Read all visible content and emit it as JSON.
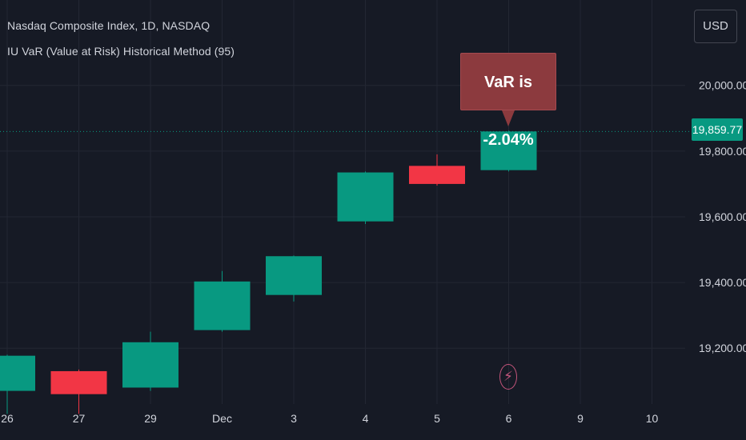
{
  "header": {
    "symbol": "Nasdaq Composite Index, 1D, NASDAQ",
    "indicator": "IU VaR (Value at Risk) Historical Method (95)"
  },
  "toolbar": {
    "currency": "USD"
  },
  "price_tag": {
    "value": "19,859.77",
    "color": "#089981"
  },
  "annotation": {
    "text": "VaR is -2.04%",
    "color": "#8c3a3e"
  },
  "event_marker": {
    "icon": "lightning-icon",
    "color": "#c2547a"
  },
  "chart_data": {
    "type": "candlestick",
    "title": "Nasdaq Composite Index, 1D, NASDAQ",
    "categories": [
      "26",
      "27",
      "29",
      "Dec",
      "3",
      "4",
      "5",
      "6",
      "9",
      "10"
    ],
    "candles": [
      {
        "date": "26",
        "open": 19070,
        "close": 19177,
        "high": 19180,
        "low": 19000
      },
      {
        "date": "27",
        "open": 19130,
        "close": 19060,
        "high": 19135,
        "low": 19000
      },
      {
        "date": "29",
        "open": 19080,
        "close": 19218,
        "high": 19250,
        "low": 19070
      },
      {
        "date": "Dec",
        "open": 19255,
        "close": 19403,
        "high": 19435,
        "low": 19250
      },
      {
        "date": "3",
        "open": 19362,
        "close": 19480,
        "high": 19482,
        "low": 19342
      },
      {
        "date": "4",
        "open": 19586,
        "close": 19735,
        "high": 19738,
        "low": 19578
      },
      {
        "date": "5",
        "open": 19755,
        "close": 19700,
        "high": 19790,
        "low": 19695
      },
      {
        "date": "6",
        "open": 19742,
        "close": 19859.77,
        "high": 19862,
        "low": 19738
      },
      {
        "date": "9",
        "open": null,
        "close": null,
        "high": null,
        "low": null
      },
      {
        "date": "10",
        "open": null,
        "close": null,
        "high": null,
        "low": null
      }
    ],
    "y_ticks": [
      19200,
      19400,
      19600,
      19800,
      20000
    ],
    "y_tick_labels": [
      "19,200.00",
      "19,400.00",
      "19,600.00",
      "19,800.00",
      "20,000.00"
    ],
    "ylim": [
      19030,
      20260
    ],
    "last_price": 19859.77,
    "grid": true,
    "colors": {
      "up": "#089981",
      "down": "#f23645",
      "background": "#161a25",
      "grid": "#232733",
      "axis_text": "#d1d4dc"
    }
  }
}
